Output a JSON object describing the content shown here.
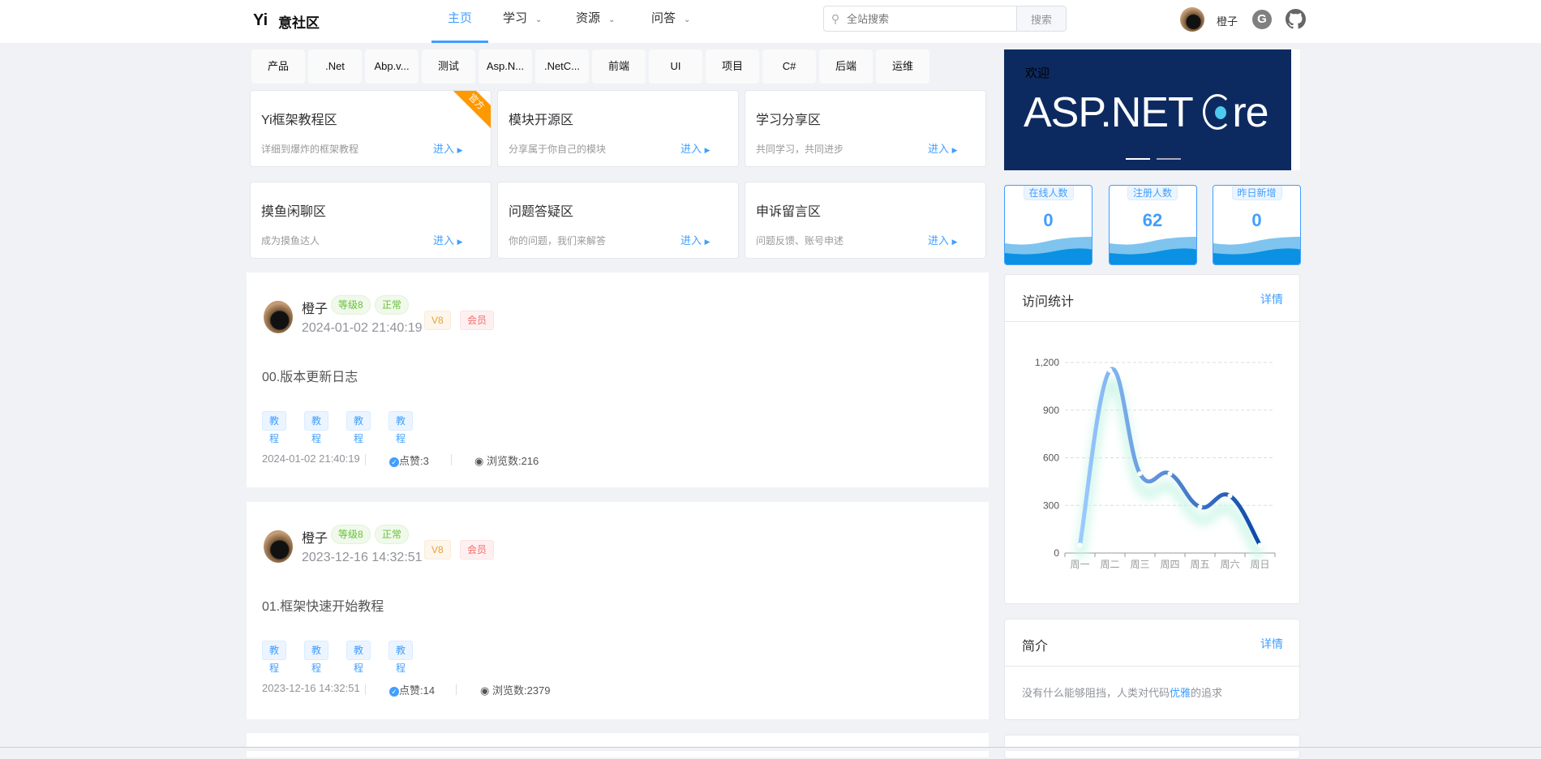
{
  "header": {
    "logo_mark": "Yi",
    "site_name": "意社区",
    "nav": [
      {
        "label": "主页",
        "active": true
      },
      {
        "label": "学习",
        "dropdown": true
      },
      {
        "label": "资源",
        "dropdown": true
      },
      {
        "label": "问答",
        "dropdown": true
      }
    ],
    "search_placeholder": "全站搜索",
    "search_button": "搜索",
    "username": "橙子",
    "gitee_letter": "G"
  },
  "categories": [
    "产品",
    ".Net",
    "Abp.v...",
    "测试",
    "Asp.N...",
    ".NetC...",
    "前端",
    "UI",
    "项目",
    "C#",
    "后端",
    "运维"
  ],
  "zones": [
    {
      "title": "Yi框架教程区",
      "desc": "详细到爆炸的框架教程",
      "enter": "进入",
      "ribbon": "官方"
    },
    {
      "title": "模块开源区",
      "desc": "分享属于你自己的模块",
      "enter": "进入"
    },
    {
      "title": "学习分享区",
      "desc": "共同学习，共同进步",
      "enter": "进入"
    },
    {
      "title": "摸鱼闲聊区",
      "desc": "成为摸鱼达人",
      "enter": "进入"
    },
    {
      "title": "问题答疑区",
      "desc": "你的问题，我们来解答",
      "enter": "进入"
    },
    {
      "title": "申诉留言区",
      "desc": "问题反馈、账号申述",
      "enter": "进入"
    }
  ],
  "posts": [
    {
      "author": "橙子",
      "level": "等级8",
      "status": "正常",
      "vip": "V8",
      "member": "会员",
      "time": "2024-01-02 21:40:19",
      "title": "00.版本更新日志",
      "tags": [
        "教程",
        "教程",
        "教程",
        "教程"
      ],
      "footer_time": "2024-01-02 21:40:19",
      "likes": "点赞:3",
      "views": "浏览数:216"
    },
    {
      "author": "橙子",
      "level": "等级8",
      "status": "正常",
      "vip": "V8",
      "member": "会员",
      "time": "2023-12-16 14:32:51",
      "title": "01.框架快速开始教程",
      "tags": [
        "教程",
        "教程",
        "教程",
        "教程"
      ],
      "footer_time": "2023-12-16 14:32:51",
      "likes": "点赞:14",
      "views": "浏览数:2379"
    }
  ],
  "banner": {
    "welcome": "欢迎",
    "text_left": "ASP.NET ",
    "text_right": "re",
    "slides": 2,
    "active_slide": 0
  },
  "stats": [
    {
      "label": "在线人数",
      "value": "0"
    },
    {
      "label": "注册人数",
      "value": "62"
    },
    {
      "label": "昨日新增",
      "value": "0"
    }
  ],
  "visits": {
    "title": "访问统计",
    "more": "详情"
  },
  "chart_data": {
    "type": "line",
    "smooth": true,
    "categories": [
      "周一",
      "周二",
      "周三",
      "周四",
      "周五",
      "周六",
      "周日"
    ],
    "values": [
      50,
      1150,
      500,
      500,
      290,
      360,
      50
    ],
    "yticks": [
      "0",
      "300",
      "600",
      "900",
      "1,200"
    ],
    "ylim": [
      0,
      1200
    ],
    "grid": true,
    "colors": [
      "#9ccbff",
      "#0b47a8"
    ]
  },
  "intro": {
    "title": "简介",
    "more": "详情",
    "text_before": "没有什么能够阻挡，人类对代码",
    "highlight": "优雅",
    "text_after": "的追求"
  }
}
